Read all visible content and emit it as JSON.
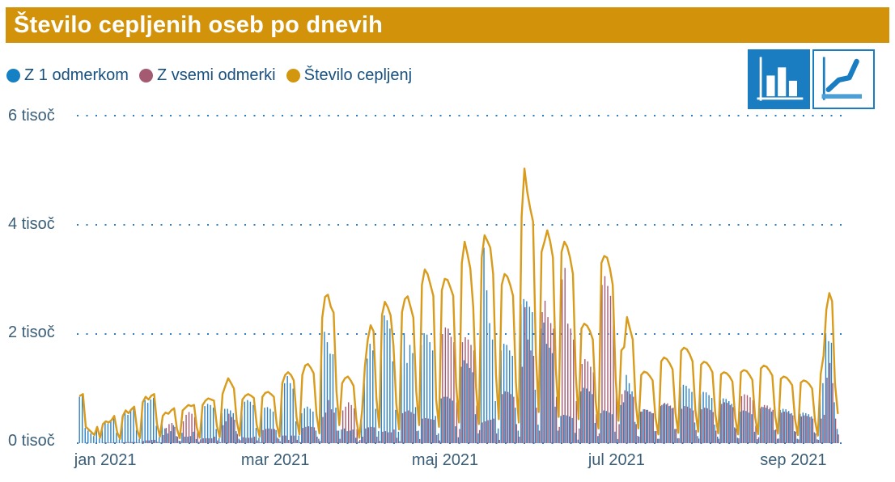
{
  "header": {
    "title": "Število cepljenih oseb po dnevih",
    "background": "#D2930B"
  },
  "legend": {
    "items": [
      {
        "label": "Z 1 odmerkom",
        "color": "#1580C4"
      },
      {
        "label": "Z vsemi odmerki",
        "color": "#A45A71"
      },
      {
        "label": "Število cepljenj",
        "color": "#D2970F"
      }
    ]
  },
  "toolbar": {
    "buttons": [
      {
        "name": "bar-chart-view",
        "active": true
      },
      {
        "name": "line-chart-view",
        "active": false
      }
    ],
    "accent": "#1A7DC2"
  },
  "chart_data": {
    "type": "bar",
    "title": "Število cepljenih oseb po dnevih",
    "xlabel": "",
    "ylabel": "",
    "ylim": [
      0,
      6000
    ],
    "grid": "dotted horizontal",
    "legend_position": "top-left",
    "gridline_color": "#2E7CC3",
    "axis_label_color": "#3A5E78",
    "y_ticks": [
      "6 tisoč",
      "4 tisoč",
      "2 tisoč",
      "0 tisoč"
    ],
    "y_tick_values": [
      6000,
      4000,
      2000,
      0
    ],
    "x_ticks": [
      "jan 2021",
      "mar 2021",
      "maj 2021",
      "jul 2021",
      "sep 2021"
    ],
    "x_tick_pct": [
      3.7,
      25.8,
      47.9,
      70.2,
      93.2
    ],
    "series": [
      {
        "name": "Z 1 odmerkom",
        "type": "bar",
        "color": "#2D83C5",
        "values": [
          850,
          870,
          280,
          230,
          180,
          130,
          280,
          90,
          330,
          380,
          360,
          400,
          480,
          190,
          70,
          480,
          570,
          520,
          590,
          640,
          240,
          80,
          700,
          790,
          740,
          800,
          830,
          320,
          110,
          340,
          270,
          180,
          220,
          330,
          130,
          45,
          190,
          120,
          120,
          130,
          210,
          75,
          25,
          600,
          680,
          720,
          700,
          650,
          260,
          90,
          550,
          630,
          630,
          600,
          550,
          220,
          80,
          680,
          760,
          790,
          760,
          700,
          280,
          100,
          600,
          650,
          660,
          630,
          580,
          240,
          80,
          950,
          1100,
          1230,
          1100,
          1000,
          400,
          140,
          550,
          640,
          670,
          630,
          580,
          230,
          80,
          1520,
          2040,
          1850,
          1640,
          1630,
          650,
          230,
          250,
          270,
          220,
          230,
          250,
          100,
          30,
          450,
          1100,
          1550,
          1820,
          1700,
          630,
          220,
          2100,
          2340,
          2250,
          2100,
          1500,
          610,
          210,
          1800,
          2015,
          1470,
          1800,
          1650,
          660,
          230,
          1800,
          2015,
          1990,
          1850,
          1700,
          500,
          180,
          820,
          850,
          850,
          820,
          780,
          310,
          110,
          1400,
          1520,
          1460,
          1380,
          1300,
          530,
          180,
          3000,
          3580,
          2800,
          2200,
          1900,
          770,
          270,
          1700,
          1820,
          1800,
          1700,
          1600,
          650,
          230,
          2540,
          2640,
          2600,
          2500,
          2400,
          980,
          340,
          2100,
          2210,
          1820,
          1750,
          1650,
          670,
          230,
          500,
          520,
          510,
          490,
          460,
          190,
          65,
          950,
          1015,
          1000,
          950,
          900,
          370,
          130,
          550,
          600,
          590,
          560,
          530,
          210,
          75,
          700,
          750,
          1250,
          1100,
          950,
          390,
          135,
          580,
          620,
          610,
          580,
          550,
          220,
          80,
          680,
          720,
          710,
          680,
          640,
          260,
          90,
          1030,
          1070,
          1050,
          1000,
          940,
          380,
          130,
          900,
          940,
          930,
          880,
          830,
          340,
          120,
          790,
          820,
          810,
          770,
          720,
          290,
          100,
          580,
          600,
          590,
          560,
          530,
          210,
          75,
          640,
          660,
          650,
          620,
          580,
          240,
          80,
          610,
          630,
          620,
          590,
          550,
          220,
          80,
          540,
          560,
          550,
          530,
          490,
          200,
          70,
          820,
          1100,
          2015,
          1870,
          1840,
          750,
          260
        ]
      },
      {
        "name": "Z vsemi odmerki",
        "type": "bar",
        "color": "#A45A71",
        "values": [
          0,
          0,
          0,
          0,
          0,
          0,
          0,
          0,
          10,
          10,
          10,
          10,
          10,
          5,
          5,
          15,
          20,
          20,
          20,
          20,
          10,
          5,
          40,
          50,
          50,
          60,
          60,
          25,
          10,
          150,
          280,
          350,
          370,
          300,
          120,
          40,
          400,
          520,
          570,
          540,
          480,
          200,
          70,
          90,
          90,
          90,
          90,
          120,
          50,
          18,
          330,
          400,
          540,
          480,
          430,
          170,
          55,
          110,
          100,
          100,
          100,
          120,
          50,
          18,
          240,
          260,
          270,
          260,
          260,
          100,
          35,
          140,
          140,
          60,
          140,
          140,
          60,
          20,
          280,
          300,
          310,
          300,
          290,
          120,
          40,
          480,
          560,
          790,
          620,
          560,
          230,
          80,
          600,
          670,
          750,
          700,
          640,
          260,
          60,
          120,
          270,
          290,
          300,
          290,
          120,
          40,
          210,
          220,
          200,
          200,
          250,
          100,
          35,
          550,
          580,
          600,
          570,
          540,
          220,
          75,
          450,
          460,
          450,
          440,
          430,
          150,
          50,
          2000,
          2120,
          2100,
          1950,
          1850,
          750,
          260,
          1850,
          1940,
          1900,
          1800,
          1700,
          690,
          240,
          380,
          400,
          420,
          430,
          450,
          180,
          60,
          900,
          950,
          940,
          900,
          850,
          350,
          120,
          1400,
          2490,
          1900,
          1700,
          1600,
          650,
          230,
          2400,
          2610,
          2310,
          2200,
          2100,
          850,
          300,
          3000,
          3210,
          2190,
          2100,
          1900,
          770,
          270,
          1450,
          1540,
          1500,
          1400,
          1300,
          530,
          180,
          2900,
          3060,
          2880,
          2700,
          2500,
          1010,
          350,
          900,
          970,
          950,
          900,
          850,
          350,
          120,
          580,
          620,
          610,
          580,
          550,
          220,
          80,
          700,
          740,
          730,
          690,
          650,
          260,
          90,
          630,
          680,
          670,
          640,
          600,
          240,
          85,
          620,
          650,
          640,
          610,
          570,
          230,
          80,
          720,
          750,
          740,
          700,
          660,
          270,
          90,
          860,
          895,
          880,
          840,
          790,
          320,
          110,
          670,
          700,
          690,
          650,
          610,
          250,
          85,
          560,
          580,
          570,
          540,
          510,
          210,
          70,
          490,
          510,
          500,
          480,
          450,
          180,
          60,
          450,
          520,
          1200,
          1470,
          1100,
          450,
          160
        ]
      },
      {
        "name": "Število cepljenj",
        "type": "line",
        "color": "#D89B1B",
        "values": [
          870,
          900,
          300,
          250,
          200,
          150,
          300,
          100,
          350,
          400,
          380,
          420,
          500,
          200,
          80,
          500,
          600,
          550,
          620,
          670,
          250,
          90,
          750,
          850,
          800,
          870,
          900,
          350,
          120,
          500,
          560,
          540,
          600,
          640,
          260,
          90,
          600,
          650,
          700,
          680,
          700,
          280,
          100,
          700,
          780,
          820,
          800,
          780,
          320,
          110,
          900,
          1050,
          1190,
          1100,
          1000,
          400,
          140,
          800,
          870,
          900,
          870,
          830,
          340,
          120,
          850,
          920,
          940,
          900,
          850,
          350,
          120,
          1100,
          1250,
          1300,
          1250,
          1150,
          470,
          160,
          1250,
          1420,
          1450,
          1380,
          1280,
          520,
          180,
          2300,
          2680,
          2720,
          2500,
          2390,
          950,
          330,
          1100,
          1190,
          1220,
          1150,
          1050,
          430,
          100,
          600,
          1420,
          1900,
          2160,
          2050,
          830,
          290,
          2350,
          2590,
          2490,
          2340,
          1790,
          730,
          250,
          2400,
          2640,
          2690,
          2500,
          2300,
          940,
          330,
          2900,
          3180,
          3100,
          2900,
          2700,
          800,
          300,
          2800,
          3010,
          2990,
          2850,
          2700,
          1090,
          380,
          3300,
          3690,
          3460,
          3200,
          2500,
          1020,
          350,
          3400,
          3810,
          3700,
          3580,
          3100,
          1260,
          440,
          2900,
          3100,
          3050,
          2900,
          2700,
          1100,
          380,
          4150,
          5030,
          4600,
          4300,
          4060,
          1650,
          570,
          3500,
          3690,
          3900,
          3700,
          3400,
          1380,
          480,
          3500,
          3690,
          3600,
          3400,
          3100,
          1260,
          440,
          2100,
          2190,
          2150,
          2050,
          1900,
          770,
          270,
          3300,
          3430,
          3400,
          3200,
          2900,
          1180,
          410,
          1700,
          1760,
          2310,
          2100,
          1900,
          770,
          270,
          1250,
          1310,
          1290,
          1230,
          1150,
          470,
          160,
          1500,
          1570,
          1540,
          1460,
          1350,
          550,
          190,
          1690,
          1750,
          1720,
          1630,
          1500,
          610,
          210,
          1440,
          1490,
          1470,
          1400,
          1300,
          530,
          180,
          1260,
          1300,
          1280,
          1220,
          1130,
          460,
          160,
          1300,
          1340,
          1320,
          1250,
          1160,
          470,
          165,
          1370,
          1420,
          1400,
          1330,
          1240,
          500,
          175,
          1180,
          1220,
          1200,
          1140,
          1060,
          430,
          150,
          1110,
          1150,
          1130,
          1080,
          1000,
          410,
          140,
          1270,
          1600,
          2450,
          2750,
          2600,
          1100,
          550
        ]
      }
    ]
  }
}
